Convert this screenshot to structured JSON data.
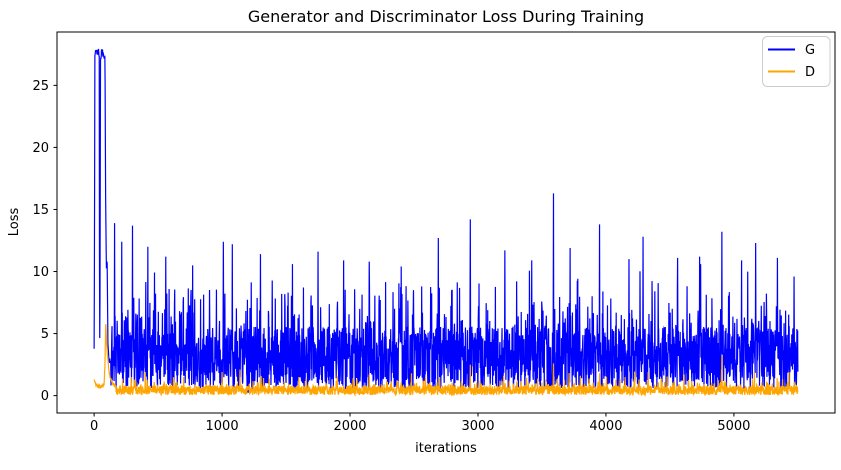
{
  "chart_data": {
    "type": "line",
    "title": "Generator and Discriminator Loss During Training",
    "xlabel": "iterations",
    "ylabel": "Loss",
    "xlim": [
      -290,
      5790
    ],
    "ylim": [
      -1.4,
      29.3
    ],
    "xticks": [
      0,
      1000,
      2000,
      3000,
      4000,
      5000
    ],
    "yticks": [
      0,
      5,
      10,
      15,
      20,
      25
    ],
    "grid": false,
    "background_color": "#ffffff",
    "spine_color": "#000000",
    "legend": {
      "position": "upper right",
      "entries": [
        {
          "label": "G",
          "color": "#0000ff"
        },
        {
          "label": "D",
          "color": "#ffa500"
        }
      ]
    },
    "series": [
      {
        "name": "G",
        "color": "#0000ff",
        "line_width": 1.2,
        "n_iterations": 5500,
        "sample_step": 2,
        "seed": 1337,
        "description": "Generator loss: spikes to ~27.8 plateau for first ~90 iterations (two columns with a brief dip ~iter 45), then dense noisy oscillation roughly 0.5-10 with occasional spikes of 11-16.3",
        "keyframes": [
          [
            0,
            4.0
          ],
          [
            3,
            12.0
          ],
          [
            6,
            27.3
          ],
          [
            10,
            27.8
          ],
          [
            40,
            27.6
          ],
          [
            43,
            3.0
          ],
          [
            46,
            8.0
          ],
          [
            50,
            26.8
          ],
          [
            57,
            27.8
          ],
          [
            85,
            27.4
          ],
          [
            90,
            16.0
          ],
          [
            96,
            10.0
          ],
          [
            102,
            11.0
          ],
          [
            108,
            4.5
          ],
          [
            116,
            3.0
          ],
          [
            130,
            2.6
          ]
        ],
        "keyframe_jitter": 0.35,
        "noise": {
          "base_min": 0.55,
          "base_span": 5.0,
          "tail_prob": 0.22,
          "tail_add": 4.6,
          "rare_prob": 0.03,
          "rare_add": 2.2,
          "dip_prob": 0.05
        },
        "spikes": [
          [
            160,
            13.9
          ],
          [
            215,
            12.4
          ],
          [
            300,
            13.7
          ],
          [
            420,
            12.0
          ],
          [
            560,
            11.2
          ],
          [
            770,
            10.5
          ],
          [
            1010,
            12.4
          ],
          [
            1080,
            12.2
          ],
          [
            1300,
            11.4
          ],
          [
            1550,
            10.6
          ],
          [
            1750,
            11.6
          ],
          [
            1950,
            10.9
          ],
          [
            2150,
            10.8
          ],
          [
            2400,
            10.4
          ],
          [
            2690,
            12.7
          ],
          [
            2940,
            14.2
          ],
          [
            3210,
            11.7
          ],
          [
            3420,
            10.9
          ],
          [
            3590,
            16.3
          ],
          [
            3720,
            11.9
          ],
          [
            3950,
            13.8
          ],
          [
            4180,
            11.0
          ],
          [
            4290,
            12.8
          ],
          [
            4560,
            11.1
          ],
          [
            4740,
            10.6
          ],
          [
            4905,
            13.2
          ],
          [
            5060,
            10.9
          ],
          [
            5170,
            12.3
          ],
          [
            5340,
            11.1
          ],
          [
            5470,
            9.6
          ]
        ]
      },
      {
        "name": "D",
        "color": "#ffa500",
        "line_width": 1.2,
        "n_iterations": 5500,
        "sample_step": 2,
        "seed": 2024,
        "description": "Discriminator loss: ~0.5-1.5 at start, spike to ~6.1 near iteration 90, then dense low band ~0-1.5 with occasional spikes to 1.5-3.3",
        "keyframes": [
          [
            0,
            1.2
          ],
          [
            20,
            0.8
          ],
          [
            50,
            0.7
          ],
          [
            78,
            0.9
          ],
          [
            85,
            2.6
          ],
          [
            91,
            6.1
          ],
          [
            97,
            4.3
          ],
          [
            103,
            3.5
          ],
          [
            112,
            2.3
          ],
          [
            125,
            1.5
          ],
          [
            145,
            1.0
          ],
          [
            170,
            0.7
          ]
        ],
        "keyframe_jitter": 0.15,
        "noise": {
          "base_min": 0.05,
          "base_span": 0.75,
          "tail_prob": 0.12,
          "tail_add": 0.75,
          "rare_prob": 0.02,
          "rare_add": 0.7,
          "dip_prob": 0.0
        },
        "spikes": [
          [
            290,
            1.5
          ],
          [
            400,
            1.9
          ],
          [
            700,
            1.5
          ],
          [
            1000,
            1.9
          ],
          [
            1140,
            2.1
          ],
          [
            1300,
            1.6
          ],
          [
            1600,
            1.5
          ],
          [
            1900,
            1.6
          ],
          [
            2150,
            1.7
          ],
          [
            2480,
            1.8
          ],
          [
            2700,
            1.5
          ],
          [
            2940,
            2.5
          ],
          [
            3200,
            1.6
          ],
          [
            3590,
            2.6
          ],
          [
            3800,
            1.6
          ],
          [
            3950,
            1.8
          ],
          [
            4150,
            1.5
          ],
          [
            4330,
            1.9
          ],
          [
            4610,
            1.7
          ],
          [
            4905,
            3.2
          ],
          [
            5160,
            1.9
          ],
          [
            5430,
            1.9
          ]
        ]
      }
    ]
  }
}
